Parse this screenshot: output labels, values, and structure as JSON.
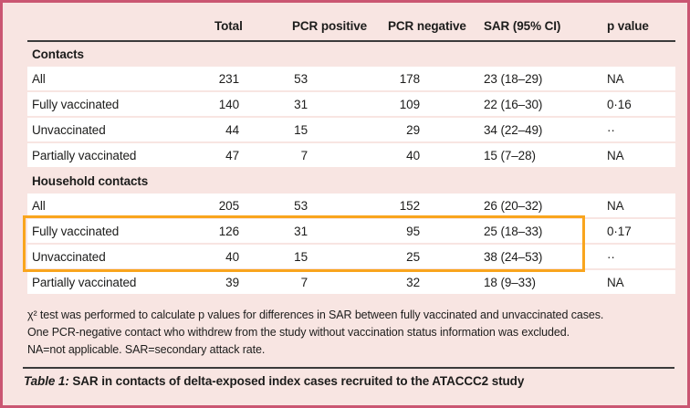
{
  "table": {
    "columns": [
      "",
      "Total",
      "PCR positive",
      "PCR negative",
      "SAR (95% CI)",
      "p value"
    ],
    "sections": [
      {
        "header": "Contacts",
        "rows": [
          {
            "cells": [
              "All",
              "231",
              "53",
              "178",
              "23 (18–29)",
              "NA"
            ]
          },
          {
            "cells": [
              "Fully vaccinated",
              "140",
              "31",
              "109",
              "22 (16–30)",
              "0·16"
            ]
          },
          {
            "cells": [
              "Unvaccinated",
              "44",
              "15",
              "29",
              "34 (22–49)",
              "··"
            ]
          },
          {
            "cells": [
              "Partially vaccinated",
              "47",
              "7",
              "40",
              "15 (7–28)",
              "NA"
            ]
          }
        ]
      },
      {
        "header": "Household contacts",
        "rows": [
          {
            "cells": [
              "All",
              "205",
              "53",
              "152",
              "26 (20–32)",
              "NA"
            ]
          },
          {
            "cells": [
              "Fully vaccinated",
              "126",
              "31",
              "95",
              "25 (18–33)",
              "0·17"
            ],
            "highlighted": true
          },
          {
            "cells": [
              "Unvaccinated",
              "40",
              "15",
              "25",
              "38 (24–53)",
              "··"
            ],
            "highlighted": true
          },
          {
            "cells": [
              "Partially vaccinated",
              "39",
              "7",
              "32",
              "18 (9–33)",
              "NA"
            ]
          }
        ]
      }
    ],
    "footnotes": [
      "χ² test was performed to calculate p values for differences in SAR between fully vaccinated and unvaccinated cases.",
      "One PCR-negative contact who withdrew from the study without vaccination status information was excluded.",
      "NA=not applicable. SAR=secondary attack rate."
    ],
    "caption_label": "Table 1:",
    "caption_text": " SAR in contacts of delta-exposed index cases recruited to the ATACCC2 study"
  },
  "colors": {
    "panel_background": "#f8e5e2",
    "panel_border": "#ca5672",
    "row_background": "#ffffff",
    "rule": "#3b3b3b",
    "highlight_border": "#f9a51d",
    "text": "#1c1c1b"
  }
}
